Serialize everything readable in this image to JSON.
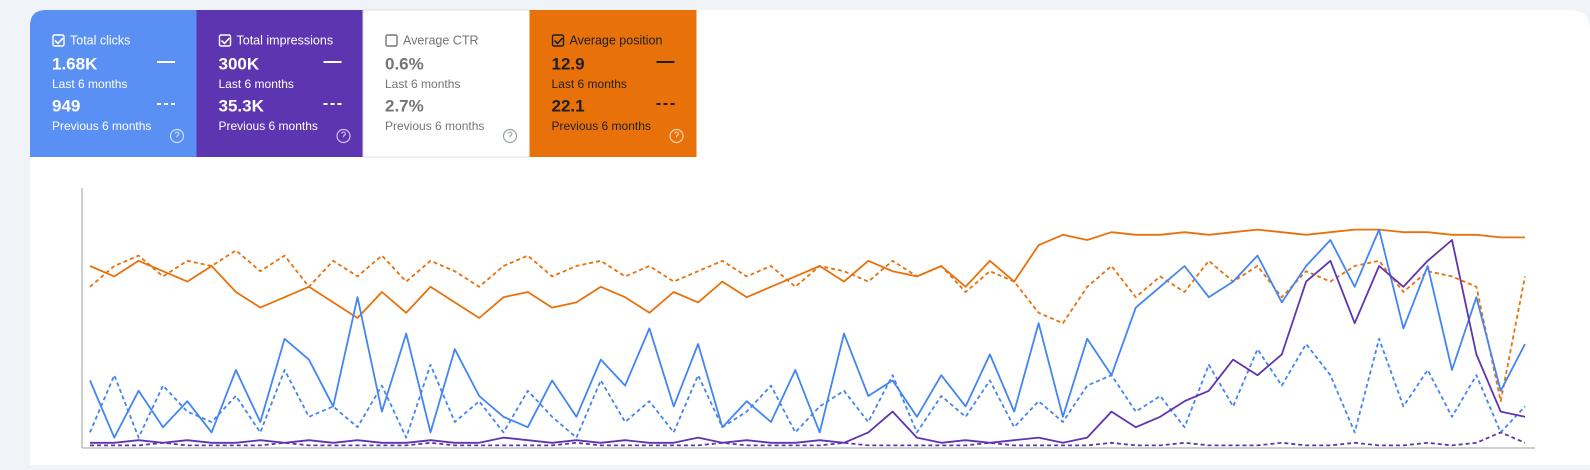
{
  "cards": [
    {
      "label": "Total clicks",
      "checked": true,
      "color": "#5a90f3",
      "text_color": "#ffffff",
      "current": "1.68K",
      "current_period": "Last 6 months",
      "previous": "949",
      "previous_period": "Previous 6 months"
    },
    {
      "label": "Total impressions",
      "checked": true,
      "color": "#5e35b1",
      "text_color": "#ffffff",
      "current": "300K",
      "current_period": "Last 6 months",
      "previous": "35.3K",
      "previous_period": "Previous 6 months"
    },
    {
      "label": "Average CTR",
      "checked": false,
      "color": "#ffffff",
      "text_color": "#757575",
      "current": "0.6%",
      "current_period": "Last 6 months",
      "previous": "2.7%",
      "previous_period": "Previous 6 months"
    },
    {
      "label": "Average position",
      "checked": true,
      "color": "#e8710a",
      "text_color": "#1f1f1f",
      "current": "12.9",
      "current_period": "Last 6 months",
      "previous": "22.1",
      "previous_period": "Previous 6 months"
    }
  ],
  "chart_data": {
    "type": "line",
    "ylim": [
      0,
      100
    ],
    "series": [
      {
        "color": "#e8710a",
        "dashed": false,
        "values": [
          70,
          66,
          72,
          68,
          64,
          70,
          60,
          54,
          58,
          62,
          56,
          50,
          60,
          52,
          62,
          56,
          50,
          58,
          60,
          54,
          56,
          62,
          58,
          52,
          60,
          56,
          64,
          58,
          62,
          66,
          70,
          64,
          72,
          68,
          66,
          70,
          62,
          72,
          64,
          78,
          82,
          80,
          83,
          82,
          82,
          83,
          82,
          83,
          84,
          83,
          82,
          83,
          84,
          84,
          83,
          83,
          82,
          82,
          81,
          81
        ]
      },
      {
        "color": "#e8710a",
        "dashed": true,
        "values": [
          62,
          70,
          74,
          66,
          72,
          70,
          76,
          68,
          74,
          62,
          72,
          66,
          74,
          64,
          72,
          68,
          62,
          70,
          74,
          66,
          70,
          72,
          66,
          70,
          64,
          68,
          72,
          66,
          70,
          62,
          70,
          68,
          64,
          72,
          66,
          70,
          60,
          68,
          64,
          52,
          48,
          62,
          70,
          58,
          66,
          60,
          72,
          64,
          70,
          58,
          68,
          64,
          70,
          72,
          60,
          68,
          66,
          62,
          18,
          66
        ]
      },
      {
        "color": "#4285f4",
        "dashed": false,
        "values": [
          26,
          4,
          22,
          8,
          18,
          6,
          30,
          10,
          42,
          34,
          16,
          58,
          14,
          44,
          6,
          38,
          20,
          12,
          8,
          26,
          12,
          34,
          24,
          46,
          16,
          40,
          8,
          18,
          10,
          30,
          6,
          44,
          20,
          26,
          12,
          28,
          16,
          36,
          14,
          48,
          12,
          42,
          28,
          54,
          62,
          70,
          58,
          64,
          74,
          56,
          70,
          80,
          62,
          84,
          46,
          70,
          30,
          58,
          22,
          40
        ]
      },
      {
        "color": "#4285f4",
        "dashed": true,
        "values": [
          6,
          28,
          4,
          24,
          14,
          10,
          20,
          6,
          30,
          12,
          16,
          8,
          24,
          4,
          32,
          10,
          18,
          6,
          22,
          12,
          4,
          26,
          10,
          18,
          6,
          28,
          8,
          14,
          24,
          6,
          16,
          22,
          10,
          28,
          6,
          20,
          12,
          26,
          8,
          18,
          10,
          24,
          28,
          14,
          20,
          8,
          32,
          16,
          38,
          24,
          40,
          28,
          6,
          42,
          16,
          30,
          12,
          28,
          6,
          16
        ]
      },
      {
        "color": "#5e35b1",
        "dashed": false,
        "values": [
          2,
          2,
          3,
          2,
          3,
          2,
          2,
          3,
          2,
          3,
          2,
          3,
          2,
          2,
          3,
          2,
          2,
          4,
          3,
          2,
          3,
          2,
          3,
          2,
          2,
          4,
          2,
          3,
          2,
          2,
          3,
          2,
          6,
          14,
          4,
          2,
          3,
          2,
          3,
          4,
          2,
          4,
          14,
          8,
          12,
          18,
          22,
          34,
          28,
          36,
          64,
          72,
          48,
          70,
          62,
          72,
          80,
          36,
          14,
          12
        ]
      },
      {
        "color": "#5e35b1",
        "dashed": true,
        "values": [
          1,
          1,
          1,
          2,
          1,
          1,
          1,
          1,
          2,
          1,
          1,
          1,
          1,
          1,
          2,
          1,
          1,
          1,
          1,
          1,
          2,
          1,
          1,
          1,
          1,
          1,
          2,
          1,
          1,
          1,
          1,
          2,
          1,
          1,
          1,
          1,
          1,
          2,
          1,
          1,
          1,
          1,
          2,
          1,
          1,
          2,
          1,
          1,
          1,
          2,
          1,
          1,
          2,
          1,
          1,
          2,
          1,
          2,
          6,
          2
        ]
      }
    ]
  }
}
